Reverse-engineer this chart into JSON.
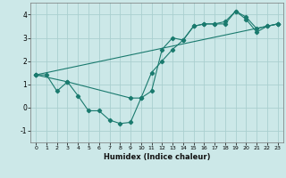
{
  "title": "",
  "xlabel": "Humidex (Indice chaleur)",
  "bg_color": "#cce8e8",
  "grid_color": "#aacfcf",
  "line_color": "#1a7a6e",
  "xlim": [
    -0.5,
    23.5
  ],
  "ylim": [
    -1.5,
    4.5
  ],
  "xticks": [
    0,
    1,
    2,
    3,
    4,
    5,
    6,
    7,
    8,
    9,
    10,
    11,
    12,
    13,
    14,
    15,
    16,
    17,
    18,
    19,
    20,
    21,
    22,
    23
  ],
  "yticks": [
    -1,
    0,
    1,
    2,
    3,
    4
  ],
  "line1_x": [
    0,
    1,
    2,
    3,
    4,
    5,
    6,
    7,
    8,
    9,
    10,
    11,
    12,
    13,
    14,
    15,
    16,
    17,
    18,
    19,
    20,
    21,
    22,
    23
  ],
  "line1_y": [
    1.4,
    1.4,
    0.7,
    1.1,
    0.5,
    -0.15,
    -0.15,
    -0.55,
    -0.7,
    -0.65,
    0.4,
    0.7,
    2.5,
    3.0,
    2.9,
    3.5,
    3.6,
    3.6,
    3.6,
    4.15,
    3.8,
    3.25,
    3.5,
    3.6
  ],
  "line2_x": [
    0,
    3,
    9,
    10,
    11,
    12,
    13,
    14,
    15,
    16,
    17,
    18,
    19,
    20,
    21,
    22,
    23
  ],
  "line2_y": [
    1.4,
    1.1,
    0.4,
    0.4,
    1.5,
    2.0,
    2.5,
    2.9,
    3.5,
    3.6,
    3.6,
    3.7,
    4.15,
    3.9,
    3.4,
    3.5,
    3.6
  ],
  "line3_x": [
    0,
    23
  ],
  "line3_y": [
    1.4,
    3.6
  ]
}
